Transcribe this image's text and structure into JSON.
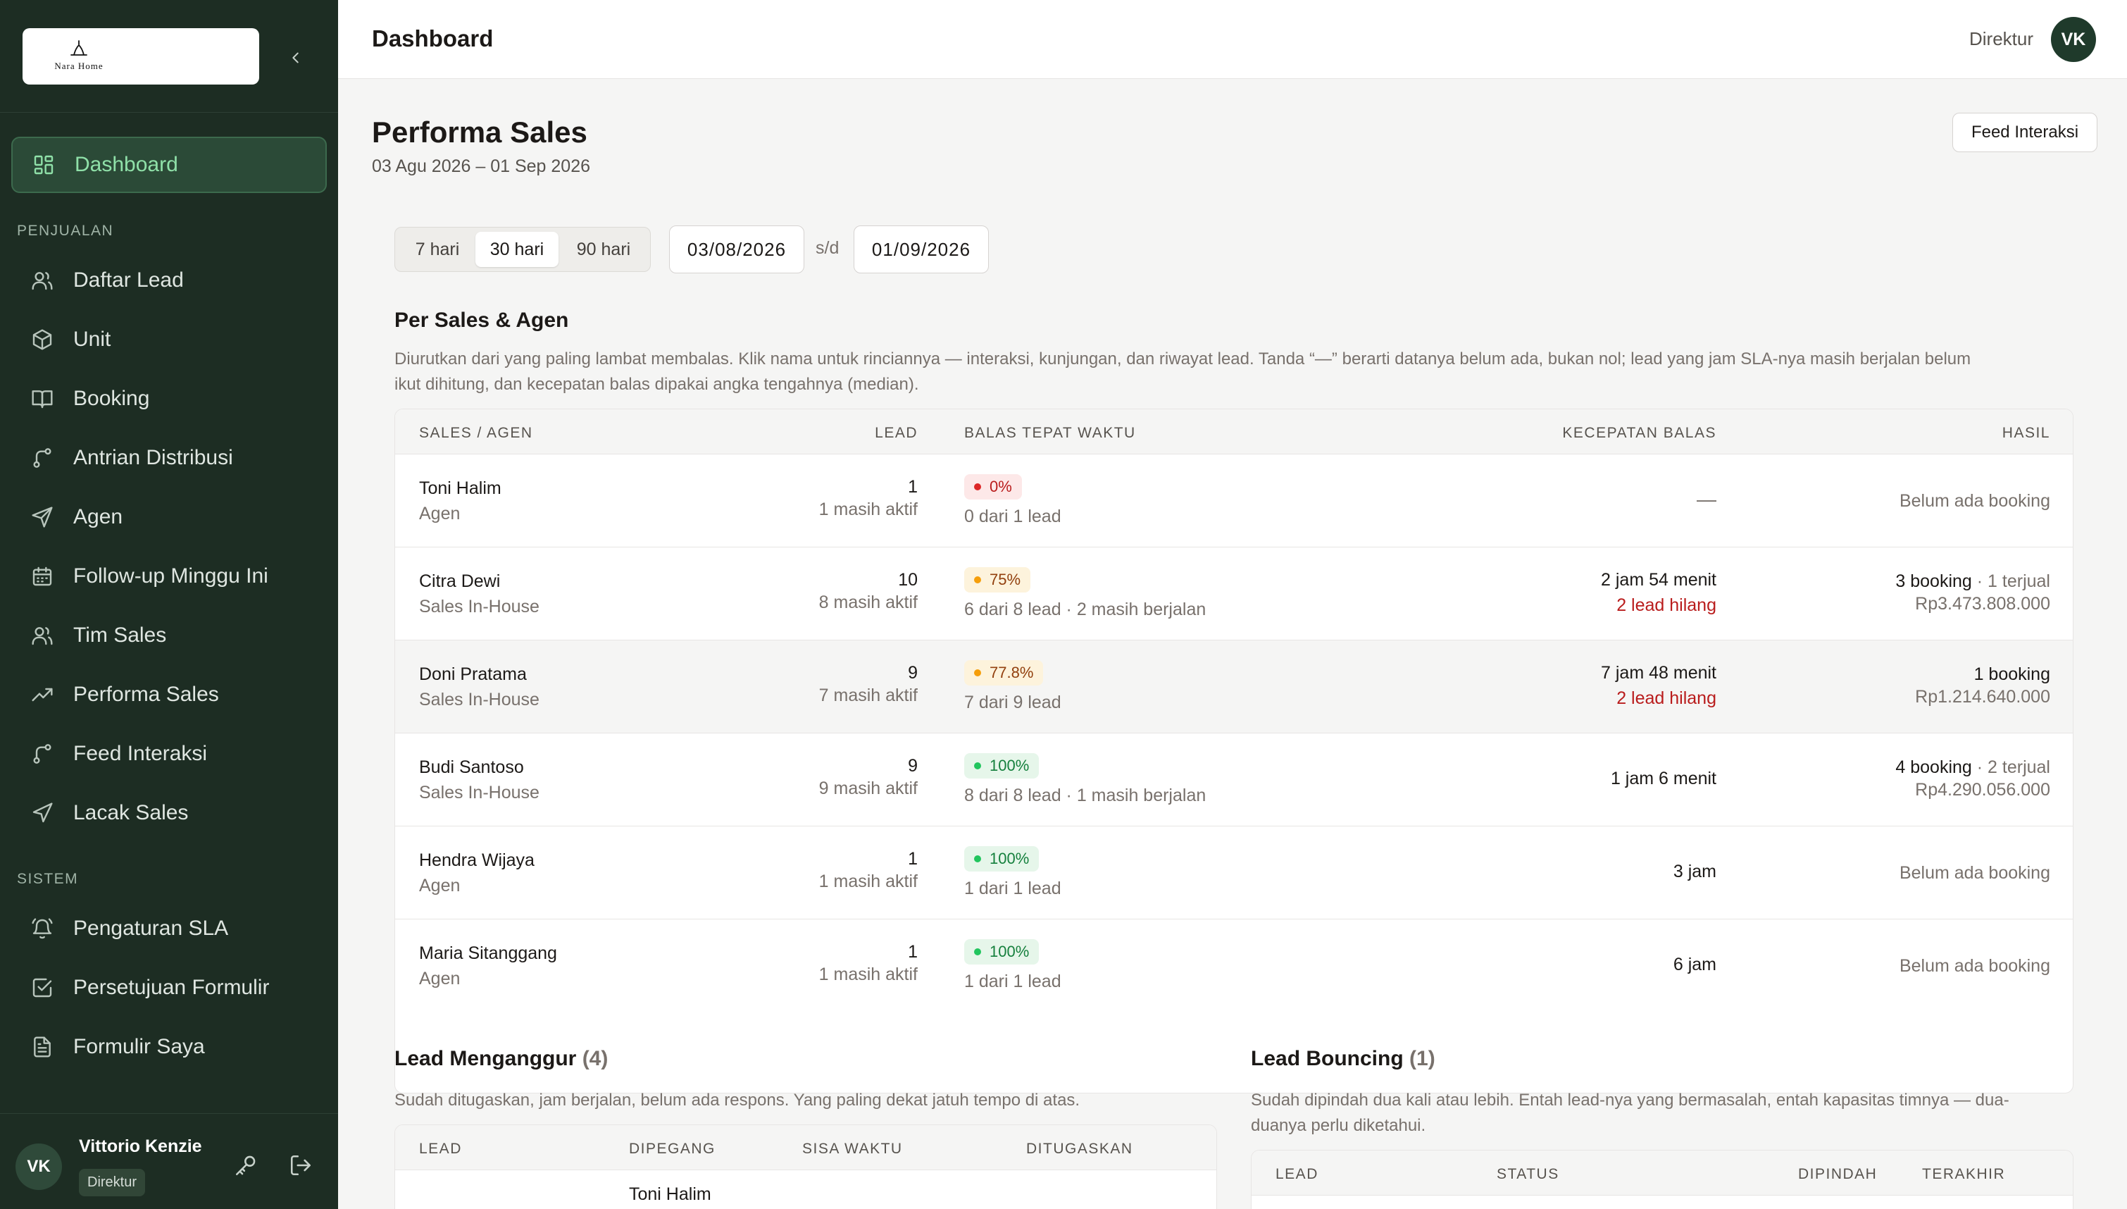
{
  "brand": {
    "logo_text": "Nara Home"
  },
  "sidebar": {
    "items": [
      {
        "label": "Dashboard",
        "icon": "grid-icon",
        "active": true
      },
      {
        "label": "Daftar Lead",
        "icon": "users-icon"
      },
      {
        "label": "Unit",
        "icon": "box-icon"
      },
      {
        "label": "Booking",
        "icon": "book-icon"
      },
      {
        "label": "Antrian Distribusi",
        "icon": "route-icon"
      },
      {
        "label": "Agen",
        "icon": "send-icon"
      },
      {
        "label": "Follow-up Minggu Ini",
        "icon": "calendar-icon"
      },
      {
        "label": "Tim Sales",
        "icon": "users-icon"
      },
      {
        "label": "Performa Sales",
        "icon": "trending-up-icon"
      },
      {
        "label": "Feed Interaksi",
        "icon": "route-icon"
      },
      {
        "label": "Lacak Sales",
        "icon": "navigation-icon"
      },
      {
        "label": "Pengaturan SLA",
        "icon": "bell-icon"
      },
      {
        "label": "Persetujuan Formulir",
        "icon": "check-square-icon"
      },
      {
        "label": "Formulir Saya",
        "icon": "file-text-icon"
      }
    ],
    "section_sales": "PENJUALAN",
    "section_system": "SISTEM"
  },
  "user": {
    "initials": "VK",
    "name": "Vittorio Kenzie",
    "role": "Direktur"
  },
  "header": {
    "title": "Dashboard",
    "role": "Direktur",
    "initials": "VK"
  },
  "page": {
    "title": "Performa Sales",
    "date_range": "03 Agu 2026 – 01 Sep 2026",
    "feed_button": "Feed Interaksi"
  },
  "filters": {
    "periods": [
      "7 hari",
      "30 hari",
      "90 hari"
    ],
    "selected_period": "30 hari",
    "start_date": "03/08/2026",
    "separator": "s/d",
    "end_date": "01/09/2026"
  },
  "per_sales": {
    "title": "Per Sales & Agen",
    "description_line1": "Diurutkan dari yang paling lambat membalas. Klik nama untuk rinciannya — interaksi, kunjungan, dan riwayat lead. Tanda “—” berarti datanya belum ada, bukan nol; lead yang jam SLA-nya masih berjalan belum",
    "description_line2": "ikut dihitung, dan kecepatan balas dipakai angka tengahnya (median).",
    "columns": [
      "SALES / AGEN",
      "LEAD",
      "BALAS TEPAT WAKTU",
      "KECEPATAN BALAS",
      "HASIL"
    ],
    "rows": [
      {
        "name": "Toni Halim",
        "role": "Agen",
        "lead": "1",
        "lead_sub": "1 masih aktif",
        "ontime": "0%",
        "ontime_level": "red",
        "ontime_sub": "0 dari 1 lead",
        "speed": "—",
        "speed_sub": "",
        "result": "",
        "result_extra": "",
        "result_sub": "Belum ada booking"
      },
      {
        "name": "Citra Dewi",
        "role": "Sales In-House",
        "lead": "10",
        "lead_sub": "8 masih aktif",
        "ontime": "75%",
        "ontime_level": "amber",
        "ontime_sub": "6 dari 8 lead · 2 masih berjalan",
        "speed": "2 jam 54 menit",
        "speed_sub": "2 lead hilang",
        "result": "3 booking",
        "result_extra": " · 1 terjual",
        "result_sub": "Rp3.473.808.000"
      },
      {
        "name": "Doni Pratama",
        "role": "Sales In-House",
        "lead": "9",
        "lead_sub": "7 masih aktif",
        "ontime": "77.8%",
        "ontime_level": "amber",
        "ontime_sub": "7 dari 9 lead",
        "speed": "7 jam 48 menit",
        "speed_sub": "2 lead hilang",
        "result": "1 booking",
        "result_extra": "",
        "result_sub": "Rp1.214.640.000"
      },
      {
        "name": "Budi Santoso",
        "role": "Sales In-House",
        "lead": "9",
        "lead_sub": "9 masih aktif",
        "ontime": "100%",
        "ontime_level": "green",
        "ontime_sub": "8 dari 8 lead · 1 masih berjalan",
        "speed": "1 jam 6 menit",
        "speed_sub": "",
        "result": "4 booking",
        "result_extra": " · 2 terjual",
        "result_sub": "Rp4.290.056.000"
      },
      {
        "name": "Hendra Wijaya",
        "role": "Agen",
        "lead": "1",
        "lead_sub": "1 masih aktif",
        "ontime": "100%",
        "ontime_level": "green",
        "ontime_sub": "1 dari 1 lead",
        "speed": "3 jam",
        "speed_sub": "",
        "result": "",
        "result_extra": "",
        "result_sub": "Belum ada booking"
      },
      {
        "name": "Maria Sitanggang",
        "role": "Agen",
        "lead": "1",
        "lead_sub": "1 masih aktif",
        "ontime": "100%",
        "ontime_level": "green",
        "ontime_sub": "1 dari 1 lead",
        "speed": "6 jam",
        "speed_sub": "",
        "result": "",
        "result_extra": "",
        "result_sub": "Belum ada booking"
      }
    ]
  },
  "idle_leads": {
    "title": "Lead Menganggur",
    "count": "(4)",
    "description": "Sudah ditugaskan, jam berjalan, belum ada respons. Yang paling dekat jatuh tempo di atas.",
    "columns": [
      "LEAD",
      "DIPEGANG",
      "SISA WAKTU",
      "DITUGASKAN"
    ],
    "first_row_holder": "Toni Halim"
  },
  "bouncing_leads": {
    "title": "Lead Bouncing",
    "count": "(1)",
    "description_line1": "Sudah dipindah dua kali atau lebih. Entah lead-nya yang bermasalah, entah kapasitas timnya — dua-",
    "description_line2": "duanya perlu diketahui.",
    "columns": [
      "LEAD",
      "STATUS",
      "DIPINDAH",
      "TERAKHIR"
    ]
  }
}
